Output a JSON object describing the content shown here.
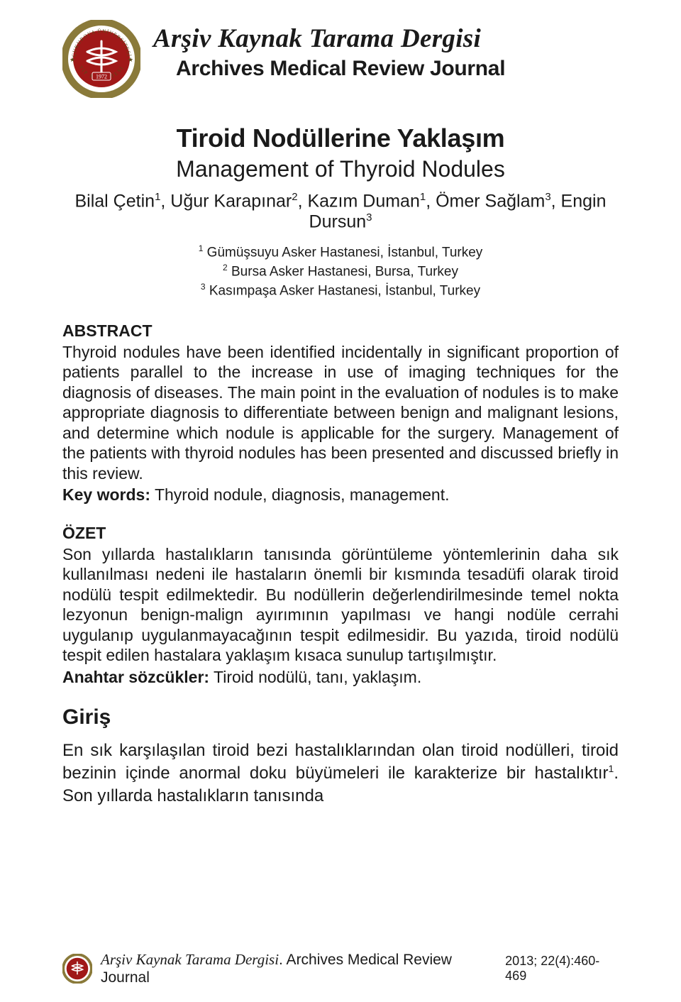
{
  "journal": {
    "title_main": "Arşiv Kaynak Tarama Dergisi",
    "title_sub": "Archives Medical Review Journal",
    "logo": {
      "outer_ring_color": "#8a7a3a",
      "inner_circle_color": "#a01818",
      "text_color": "#ffffff",
      "ring_text_top": "ÇUKUROVA ÜNİVERSİTESİ",
      "ring_text_bottom": "TIP FAKÜLTESİ",
      "year_banner": "1972"
    }
  },
  "article": {
    "title_tr": "Tiroid Nodüllerine Yaklaşım",
    "title_en": "Management of Thyroid Nodules",
    "authors_html": "Bilal Çetin<sup>1</sup>, Uğur Karapınar<sup>2</sup>, Kazım Duman<sup>1</sup>, Ömer Sağlam<sup>3</sup>, Engin Dursun<sup>3</sup>",
    "affiliations_html": "<sup>1</sup> Gümüşsuyu Asker Hastanesi, İstanbul, Turkey<br><sup>2</sup> Bursa Asker Hastanesi, Bursa, Turkey<br><sup>3</sup> Kasımpaşa Asker Hastanesi, İstanbul, Turkey"
  },
  "abstract": {
    "heading": "ABSTRACT",
    "body": "Thyroid nodules have been identified incidentally in significant proportion of patients parallel to the increase in use of imaging techniques for the diagnosis of diseases. The main point in the evaluation of nodules is to make appropriate diagnosis to differentiate between benign and malignant lesions, and determine which nodule is applicable for the surgery. Management of the patients with thyroid nodules has been presented and discussed briefly in this review.",
    "keywords_label": "Key words:",
    "keywords_text": " Thyroid nodule, diagnosis, management."
  },
  "ozet": {
    "heading": "ÖZET",
    "body": "Son yıllarda hastalıkların tanısında görüntüleme yöntemlerinin daha sık kullanılması nedeni ile hastaların önemli bir kısmında tesadüfi olarak tiroid nodülü tespit edilmektedir. Bu nodüllerin değerlendirilmesinde temel nokta lezyonun benign-malign ayırımının yapılması ve hangi nodüle cerrahi uygulanıp uygulanmayacağının tespit edilmesidir. Bu yazıda, tiroid nodülü tespit edilen hastalara yaklaşım kısaca sunulup tartışılmıştır.",
    "keywords_label": "Anahtar sözcükler:",
    "keywords_text": " Tiroid nodülü, tanı, yaklaşım."
  },
  "giris": {
    "heading": "Giriş",
    "body_html": "En sık karşılaşılan tiroid bezi hastalıklarından olan tiroid nodülleri, tiroid bezinin içinde anormal doku büyümeleri ile karakterize bir hastalıktır<sup>1</sup>. Son yıllarda hastalıkların tanısında"
  },
  "footer": {
    "journal_it": "Arşiv Kaynak Tarama Dergisi",
    "journal_rm": ". Archives Medical Review Journal",
    "issue": "2013; 22(4):460-469"
  },
  "style": {
    "page_bg": "#ffffff",
    "text_color": "#1a1a1a",
    "title_main_fontsize": 37,
    "title_sub_fontsize": 30,
    "article_title_tr_fontsize": 36,
    "article_title_en_fontsize": 32,
    "authors_fontsize": 25,
    "affiliations_fontsize": 19,
    "section_heading_fontsize": 23,
    "body_fontsize": 23,
    "giris_heading_fontsize": 30,
    "giris_body_fontsize": 24,
    "footer_fontsize": 21,
    "footer_issue_fontsize": 18
  }
}
